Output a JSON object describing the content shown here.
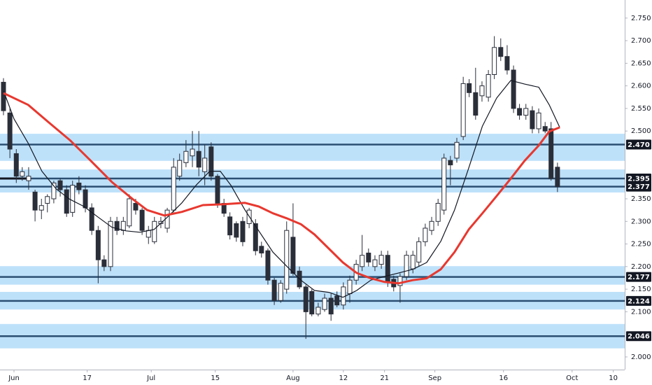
{
  "chart_data": {
    "type": "candlestick",
    "up_color": "#ffffff",
    "down_color": "#2a2e39",
    "outline_color": "#2a2e39",
    "xlim": [
      -2.06,
      134.5
    ],
    "ylim": [
      1.972,
      2.79
    ],
    "xticks": [
      {
        "value": 1,
        "label": "Jun"
      },
      17,
      {
        "value": 31,
        "label": "Jul"
      },
      {
        "value": 45,
        "label": "15"
      },
      {
        "value": 62,
        "label": "Aug"
      },
      {
        "value": 73,
        "label": "12"
      },
      {
        "value": 82,
        "label": "21"
      },
      {
        "value": 93,
        "label": "Sep"
      },
      {
        "value": 108,
        "label": "16"
      },
      {
        "value": 123,
        "label": "Oct"
      },
      {
        "value": 132,
        "label": "10"
      }
    ],
    "yticks": [
      {
        "value": 2.0,
        "label": "2.000"
      },
      {
        "value": 2.1,
        "label": "2.100"
      },
      {
        "value": 2.15,
        "label": "2.150"
      },
      {
        "value": 2.2,
        "label": "2.200"
      },
      {
        "value": 2.25,
        "label": "2.250"
      },
      {
        "value": 2.3,
        "label": "2.300"
      },
      {
        "value": 2.35,
        "label": "2.350"
      },
      {
        "value": 2.5,
        "label": "2.500"
      },
      {
        "value": 2.55,
        "label": "2.550"
      },
      {
        "value": 2.6,
        "label": "2.600"
      },
      {
        "value": 2.65,
        "label": "2.650"
      },
      {
        "value": 2.7,
        "label": "2.700"
      },
      {
        "value": 2.75,
        "label": "2.750"
      }
    ],
    "x": [
      -1.3,
      0.1,
      1.5,
      2.8,
      4.2,
      5.6,
      7.0,
      8.3,
      9.7,
      11.1,
      12.5,
      13.8,
      15.2,
      16.6,
      18.0,
      19.4,
      20.7,
      22.1,
      23.5,
      24.9,
      26.2,
      27.6,
      29.0,
      30.4,
      31.7,
      33.1,
      34.5,
      35.9,
      37.2,
      38.6,
      40.0,
      41.4,
      42.7,
      44.1,
      45.5,
      46.9,
      48.2,
      49.6,
      51.0,
      52.4,
      53.8,
      55.1,
      56.5,
      57.9,
      59.3,
      60.6,
      62.0,
      63.4,
      64.8,
      66.1,
      67.5,
      68.9,
      70.3,
      71.6,
      73.0,
      74.4,
      75.8,
      77.1,
      78.5,
      79.9,
      81.3,
      82.7,
      84.0,
      85.4,
      86.8,
      88.2,
      89.5,
      90.9,
      92.3,
      93.7,
      95.0,
      96.4,
      97.8,
      99.2,
      100.5,
      101.9,
      103.3,
      104.7,
      106.0,
      107.4,
      108.8,
      110.2,
      111.5,
      112.9,
      114.3,
      115.7,
      117.1,
      118.4,
      119.8
    ],
    "open": [
      2.608,
      2.54,
      2.45,
      2.4,
      2.39,
      2.365,
      2.325,
      2.34,
      2.35,
      2.39,
      2.37,
      2.32,
      2.385,
      2.37,
      2.33,
      2.28,
      2.215,
      2.2,
      2.3,
      2.28,
      2.29,
      2.34,
      2.325,
      2.265,
      2.255,
      2.295,
      2.285,
      2.325,
      2.4,
      2.43,
      2.445,
      2.455,
      2.41,
      2.465,
      2.4,
      2.34,
      2.31,
      2.295,
      2.3,
      2.295,
      2.295,
      2.245,
      2.235,
      2.17,
      2.125,
      2.15,
      2.265,
      2.19,
      2.155,
      2.145,
      2.095,
      2.105,
      2.13,
      2.135,
      2.115,
      2.14,
      2.17,
      2.2,
      2.23,
      2.2,
      2.205,
      2.225,
      2.172,
      2.158,
      2.178,
      2.195,
      2.21,
      2.255,
      2.28,
      2.3,
      2.325,
      2.435,
      2.44,
      2.488,
      2.605,
      2.585,
      2.578,
      2.575,
      2.625,
      2.685,
      2.665,
      2.635,
      2.55,
      2.535,
      2.545,
      2.505,
      2.51,
      2.505,
      2.42
    ],
    "high": [
      2.617,
      2.55,
      2.46,
      2.42,
      2.42,
      2.37,
      2.35,
      2.36,
      2.39,
      2.395,
      2.38,
      2.39,
      2.4,
      2.38,
      2.34,
      2.29,
      2.225,
      2.31,
      2.31,
      2.31,
      2.36,
      2.35,
      2.33,
      2.29,
      2.31,
      2.31,
      2.33,
      2.44,
      2.45,
      2.48,
      2.5,
      2.5,
      2.47,
      2.475,
      2.405,
      2.35,
      2.32,
      2.3,
      2.31,
      2.33,
      2.305,
      2.255,
      2.24,
      2.175,
      2.17,
      2.3,
      2.34,
      2.2,
      2.16,
      2.15,
      2.12,
      2.14,
      2.14,
      2.145,
      2.165,
      2.18,
      2.215,
      2.27,
      2.24,
      2.225,
      2.235,
      2.235,
      2.18,
      2.185,
      2.235,
      2.235,
      2.265,
      2.295,
      2.31,
      2.35,
      2.45,
      2.445,
      2.485,
      2.62,
      2.615,
      2.64,
      2.61,
      2.635,
      2.71,
      2.705,
      2.69,
      2.645,
      2.56,
      2.56,
      2.555,
      2.55,
      2.52,
      2.52,
      2.43
    ],
    "low": [
      2.535,
      2.44,
      2.385,
      2.39,
      2.37,
      2.3,
      2.305,
      2.32,
      2.34,
      2.355,
      2.31,
      2.31,
      2.36,
      2.32,
      2.27,
      2.163,
      2.19,
      2.19,
      2.27,
      2.27,
      2.285,
      2.315,
      2.27,
      2.25,
      2.25,
      2.285,
      2.275,
      2.32,
      2.39,
      2.42,
      2.42,
      2.4,
      2.38,
      2.39,
      2.33,
      2.31,
      2.26,
      2.255,
      2.245,
      2.285,
      2.225,
      2.22,
      2.16,
      2.115,
      2.12,
      2.14,
      2.18,
      2.15,
      2.04,
      2.09,
      2.09,
      2.1,
      2.08,
      2.11,
      2.105,
      2.12,
      2.16,
      2.19,
      2.2,
      2.19,
      2.195,
      2.155,
      2.145,
      2.12,
      2.17,
      2.185,
      2.2,
      2.245,
      2.27,
      2.29,
      2.315,
      2.38,
      2.43,
      2.48,
      2.575,
      2.525,
      2.565,
      2.565,
      2.615,
      2.655,
      2.625,
      2.54,
      2.525,
      2.525,
      2.495,
      2.495,
      2.495,
      2.39,
      2.365
    ],
    "close": [
      2.545,
      2.46,
      2.4,
      2.41,
      2.4,
      2.325,
      2.335,
      2.355,
      2.385,
      2.37,
      2.318,
      2.38,
      2.37,
      2.33,
      2.28,
      2.215,
      2.2,
      2.3,
      2.28,
      2.3,
      2.35,
      2.325,
      2.28,
      2.28,
      2.3,
      2.3,
      2.325,
      2.42,
      2.435,
      2.455,
      2.46,
      2.42,
      2.44,
      2.4,
      2.34,
      2.318,
      2.27,
      2.265,
      2.255,
      2.325,
      2.235,
      2.23,
      2.17,
      2.125,
      2.163,
      2.28,
      2.185,
      2.155,
      2.1,
      2.095,
      2.11,
      2.13,
      2.095,
      2.115,
      2.155,
      2.17,
      2.205,
      2.225,
      2.21,
      2.215,
      2.225,
      2.165,
      2.155,
      2.178,
      2.225,
      2.225,
      2.255,
      2.285,
      2.3,
      2.34,
      2.44,
      2.425,
      2.475,
      2.605,
      2.585,
      2.535,
      2.6,
      2.625,
      2.685,
      2.665,
      2.635,
      2.55,
      2.535,
      2.55,
      2.505,
      2.54,
      2.5,
      2.395,
      2.377
    ],
    "series": [
      {
        "color": "#131722",
        "x": [
          -1.3,
          1.0,
          4.1,
          7.1,
          10.2,
          13.2,
          16.3,
          19.3,
          22.4,
          25.5,
          28.5,
          31.6,
          34.6,
          37.7,
          40.8,
          43.8,
          46.1,
          48.4,
          51.5,
          54.5,
          57.6,
          60.6,
          63.7,
          66.7,
          69.8,
          72.9,
          75.9,
          79.0,
          82.0,
          85.1,
          88.2,
          91.2,
          94.3,
          97.3,
          100.4,
          103.4,
          106.5,
          109.6,
          112.6,
          115.7,
          118.0,
          120.3
        ],
        "values": [
          2.589,
          2.527,
          2.473,
          2.411,
          2.372,
          2.349,
          2.333,
          2.31,
          2.287,
          2.279,
          2.276,
          2.282,
          2.31,
          2.341,
          2.38,
          2.411,
          2.411,
          2.38,
          2.325,
          2.279,
          2.232,
          2.201,
          2.17,
          2.147,
          2.143,
          2.132,
          2.147,
          2.17,
          2.178,
          2.186,
          2.194,
          2.209,
          2.256,
          2.325,
          2.418,
          2.511,
          2.573,
          2.612,
          2.604,
          2.597,
          2.558,
          2.508
        ]
      },
      {
        "color": "#e8382f",
        "x": [
          -1.3,
          4.1,
          8.6,
          13.2,
          17.8,
          22.4,
          27.0,
          30.1,
          33.9,
          37.7,
          42.3,
          46.9,
          51.5,
          54.5,
          57.6,
          60.6,
          63.7,
          66.7,
          69.8,
          72.9,
          75.9,
          79.0,
          82.0,
          85.1,
          88.2,
          91.2,
          94.3,
          97.3,
          100.4,
          103.4,
          106.5,
          109.6,
          112.6,
          115.7,
          118.0,
          120.3
        ],
        "values": [
          2.584,
          2.558,
          2.519,
          2.48,
          2.434,
          2.387,
          2.349,
          2.325,
          2.313,
          2.321,
          2.336,
          2.338,
          2.341,
          2.333,
          2.318,
          2.307,
          2.294,
          2.271,
          2.24,
          2.209,
          2.186,
          2.174,
          2.166,
          2.163,
          2.17,
          2.174,
          2.194,
          2.232,
          2.282,
          2.318,
          2.356,
          2.395,
          2.434,
          2.468,
          2.499,
          2.508
        ]
      }
    ],
    "zones": [
      [
        2.434,
        2.494
      ],
      [
        2.364,
        2.415
      ],
      [
        2.16,
        2.201
      ],
      [
        2.105,
        2.144
      ],
      [
        2.019,
        2.073
      ]
    ],
    "zone_color": "#b3dcf9",
    "levels": [
      {
        "value": 2.47,
        "label": "2.470"
      },
      {
        "value": 2.395,
        "label": "2.395"
      },
      {
        "value": 2.377,
        "label": "2.377"
      },
      {
        "value": 2.177,
        "label": "2.177"
      },
      {
        "value": 2.124,
        "label": "2.124"
      },
      {
        "value": 2.046,
        "label": "2.046"
      }
    ],
    "level_color": "#2b4f72",
    "ray": {
      "value": 2.395,
      "x": [
        -2.06,
        3.8
      ]
    }
  }
}
